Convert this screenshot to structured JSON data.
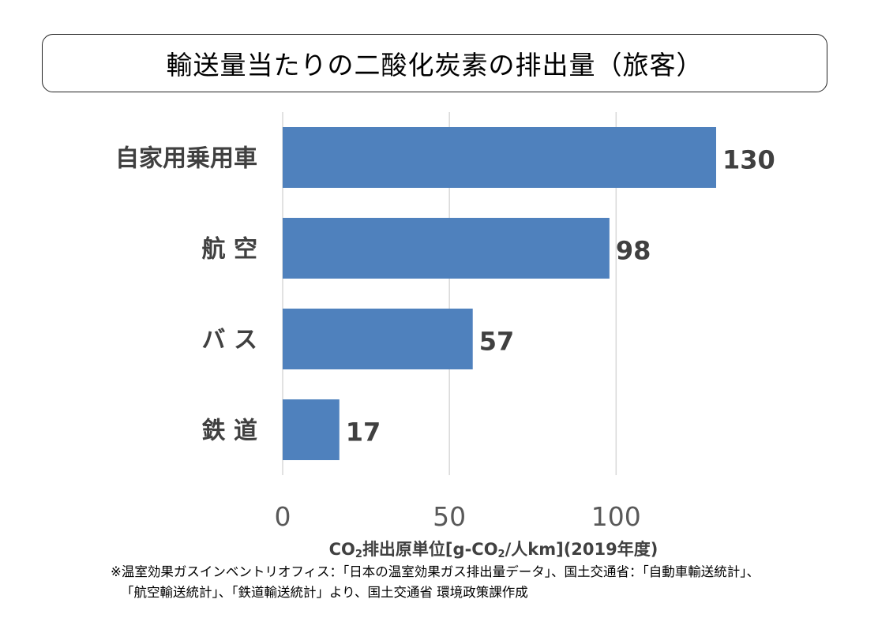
{
  "title": "輸送量当たりの二酸化炭素の排出量（旅客）",
  "chart_data": {
    "type": "bar",
    "orientation": "horizontal",
    "categories": [
      "自家用乗用車",
      "航 空",
      "バ ス",
      "鉄 道"
    ],
    "values": [
      130,
      98,
      57,
      17
    ],
    "value_labels": [
      "130",
      "98",
      "57",
      "17"
    ],
    "xlim": [
      0,
      130
    ],
    "xticks": [
      0,
      50,
      100
    ],
    "xtick_labels": [
      "0",
      "50",
      "100"
    ],
    "grid": "vertical",
    "bar_color": "#4f81bd",
    "xlabel": {
      "pre": "CO",
      "sub1": "2",
      "mid": "排出原単位[g-CO",
      "sub2": "2",
      "post": "/人km](2019年度)"
    }
  },
  "note": {
    "line1": "※温室効果ガスインベントリオフィス：「日本の温室効果ガス排出量データ」、国土交通省：「自動車輸送統計」、",
    "line2": "「航空輸送統計」、「鉄道輸送統計」より、国土交通省 環境政策課作成"
  }
}
